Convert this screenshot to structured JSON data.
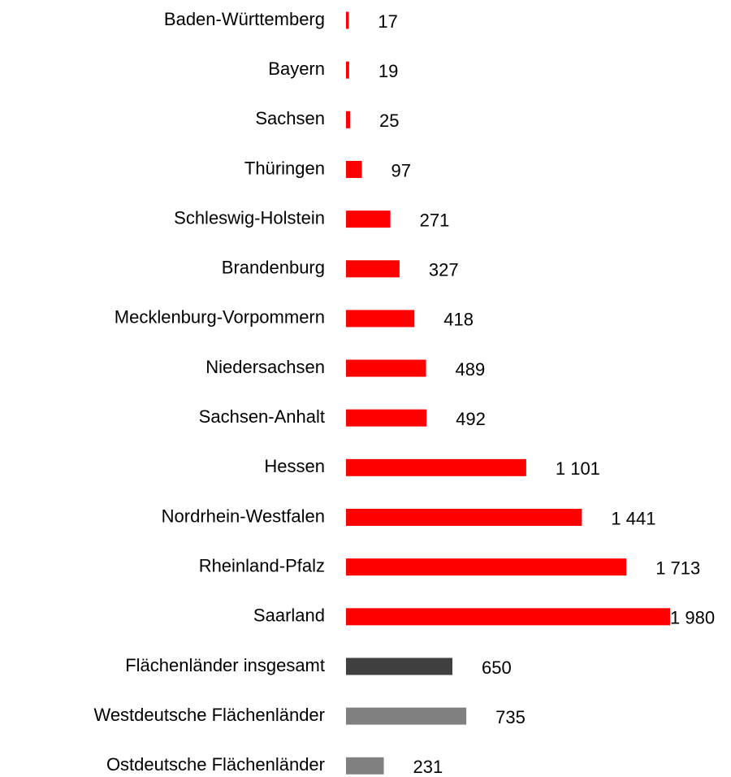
{
  "chart_data": {
    "type": "bar",
    "orientation": "horizontal",
    "categories": [
      "Baden-Württemberg",
      "Bayern",
      "Sachsen",
      "Thüringen",
      "Schleswig-Holstein",
      "Brandenburg",
      "Mecklenburg-Vorpommern",
      "Niedersachsen",
      "Sachsen-Anhalt",
      "Hessen",
      "Nordrhein-Westfalen",
      "Rheinland-Pfalz",
      "Saarland",
      "Flächenländer insgesamt",
      "Westdeutsche Flächenländer",
      "Ostdeutsche Flächenländer"
    ],
    "values": [
      17,
      19,
      25,
      97,
      271,
      327,
      418,
      489,
      492,
      1101,
      1441,
      1713,
      1980,
      650,
      735,
      231
    ],
    "value_labels": [
      "17",
      "19",
      "25",
      "97",
      "271",
      "327",
      "418",
      "489",
      "492",
      "1 101",
      "1 441",
      "1 713",
      "1 980",
      "650",
      "735",
      "231"
    ],
    "colors": [
      "#ff0000",
      "#ff0000",
      "#ff0000",
      "#ff0000",
      "#ff0000",
      "#ff0000",
      "#ff0000",
      "#ff0000",
      "#ff0000",
      "#ff0000",
      "#ff0000",
      "#ff0000",
      "#ff0000",
      "#404040",
      "#808080",
      "#808080"
    ]
  }
}
